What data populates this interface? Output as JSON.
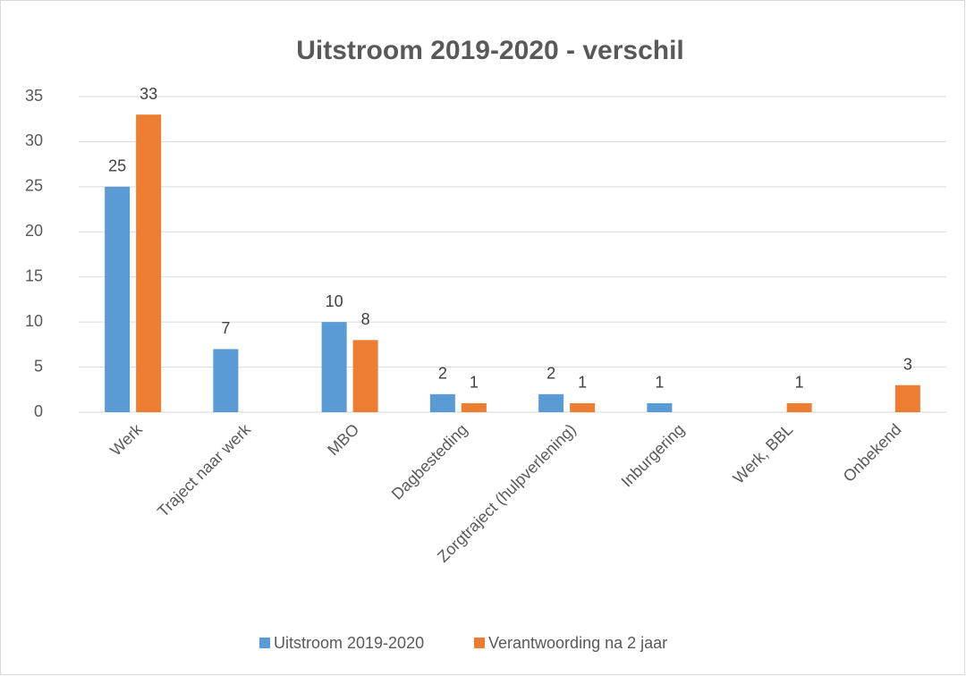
{
  "chart_data": {
    "type": "bar",
    "title": "Uitstroom 2019-2020 - verschil",
    "categories": [
      "Werk",
      "Traject naar werk",
      "MBO",
      "Dagbesteding",
      "Zorgtraject (hulpverlening)",
      "Inburgering",
      "Werk, BBL",
      "Onbekend"
    ],
    "series": [
      {
        "name": "Uitstroom 2019-2020",
        "color": "#5b9bd5",
        "values": [
          25,
          7,
          10,
          2,
          2,
          1,
          null,
          null
        ]
      },
      {
        "name": "Verantwoording na 2 jaar",
        "color": "#ed7d31",
        "values": [
          33,
          null,
          8,
          1,
          1,
          null,
          1,
          3
        ]
      }
    ],
    "ylim": [
      0,
      35
    ],
    "yticks": [
      0,
      5,
      10,
      15,
      20,
      25,
      30,
      35
    ],
    "grid": true,
    "legend": "bottom"
  }
}
